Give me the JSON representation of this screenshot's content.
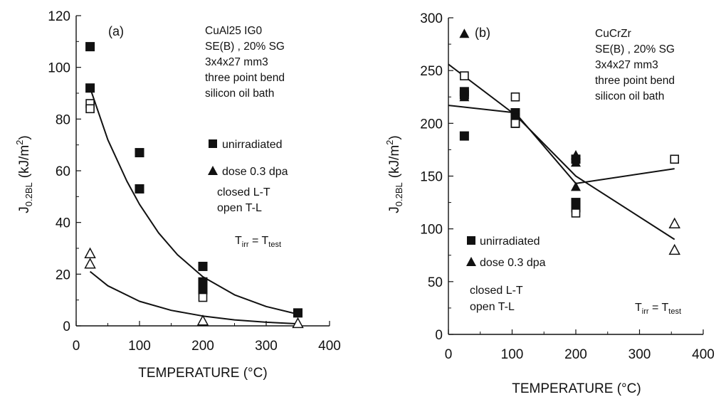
{
  "chart_data": [
    {
      "type": "scatter",
      "panel_label": "(a)",
      "xlabel": "TEMPERATURE (°C)",
      "ylabel_main": "J",
      "ylabel_sub": "0.2BL",
      "ylabel_unit": "(kJ/m",
      "ylabel_sup": "2",
      "ylabel_close": ")",
      "xlim": [
        0,
        400
      ],
      "ylim": [
        0,
        120
      ],
      "xticks": [
        "0",
        "100",
        "200",
        "300",
        "400"
      ],
      "yticks": [
        "0",
        "20",
        "40",
        "60",
        "80",
        "100",
        "120"
      ],
      "annotation": [
        "CuAl25 IG0",
        "SE(B) , 20% SG",
        "3x4x27 mm3",
        "three point bend",
        "silicon oil bath"
      ],
      "legend": {
        "filled_square": "unirradiated",
        "triangle": "dose 0.3 dpa",
        "closed": "closed  L-T",
        "open": "open  T-L"
      },
      "tirr_label": {
        "a": "T",
        "a_sub": "irr",
        "eq": " = T",
        "b_sub": "test"
      },
      "series": [
        {
          "marker": "filled-square",
          "x": [
            22,
            22,
            100,
            100,
            200,
            200,
            200,
            350
          ],
          "y": [
            108,
            92,
            67,
            53,
            23,
            17,
            14,
            5
          ]
        },
        {
          "marker": "open-square",
          "x": [
            22,
            22,
            200
          ],
          "y": [
            86,
            84,
            11
          ]
        },
        {
          "marker": "open-triangle",
          "x": [
            22,
            22,
            200,
            350
          ],
          "y": [
            28,
            24,
            2,
            1
          ]
        }
      ],
      "curves": [
        {
          "x": [
            22,
            50,
            80,
            100,
            130,
            160,
            200,
            250,
            300,
            350
          ],
          "y": [
            92,
            72,
            56,
            47,
            36,
            27.5,
            19,
            12,
            7.5,
            4.5
          ]
        },
        {
          "x": [
            22,
            50,
            100,
            150,
            200,
            250,
            300,
            350
          ],
          "y": [
            21,
            15.5,
            9.5,
            6,
            3.8,
            2.3,
            1.4,
            0.8
          ]
        }
      ]
    },
    {
      "type": "scatter",
      "panel_label": "(b)",
      "xlabel": "TEMPERATURE (°C)",
      "ylabel_main": "J",
      "ylabel_sub": "0.2BL",
      "ylabel_unit": "(kJ/m",
      "ylabel_sup": "2",
      "ylabel_close": ")",
      "xlim": [
        0,
        400
      ],
      "ylim": [
        0,
        300
      ],
      "xticks": [
        "0",
        "100",
        "200",
        "300",
        "400"
      ],
      "yticks": [
        "0",
        "50",
        "100",
        "150",
        "200",
        "250",
        "300"
      ],
      "annotation": [
        "CuCrZr",
        "SE(B) , 20% SG",
        "3x4x27 mm3",
        "three point bend",
        "silicon oil bath"
      ],
      "legend": {
        "filled_square": "unirradiated",
        "triangle": "dose 0.3 dpa",
        "closed": "closed L-T",
        "open": "open T-L"
      },
      "tirr_label": {
        "a": "T",
        "a_sub": "irr",
        "eq": " = T",
        "b_sub": "test"
      },
      "series": [
        {
          "marker": "filled-square",
          "x": [
            25,
            25,
            25,
            105,
            105,
            105,
            200,
            200,
            200
          ],
          "y": [
            230,
            227,
            188,
            210,
            205,
            200,
            166,
            125,
            120
          ]
        },
        {
          "marker": "open-square",
          "x": [
            25,
            105,
            105,
            200,
            355
          ],
          "y": [
            245,
            225,
            200,
            115,
            166
          ]
        },
        {
          "marker": "filled-triangle",
          "x": [
            25,
            25,
            200,
            200,
            200
          ],
          "y": [
            285,
            225,
            170,
            163,
            140
          ]
        },
        {
          "marker": "open-triangle",
          "x": [
            355,
            355
          ],
          "y": [
            105,
            80
          ]
        }
      ],
      "curves": [
        {
          "x": [
            0,
            105,
            200,
            355
          ],
          "y": [
            217,
            210,
            143,
            157
          ]
        },
        {
          "x": [
            0,
            105,
            200,
            355
          ],
          "y": [
            256,
            208,
            150,
            90
          ]
        }
      ]
    }
  ]
}
